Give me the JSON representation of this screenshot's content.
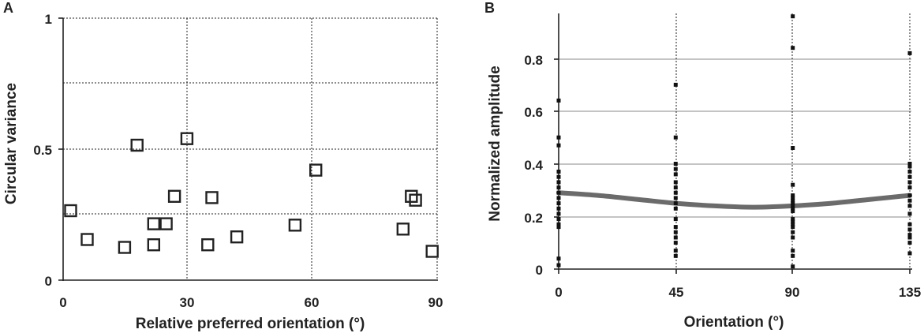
{
  "chart_data": [
    {
      "panel": "A",
      "type": "scatter",
      "title": "",
      "xlabel": "Relative preferred orientation (°)",
      "ylabel": "Circular variance",
      "xlim": [
        0,
        90
      ],
      "ylim": [
        0,
        1
      ],
      "xticks": [
        "0",
        "30",
        "60",
        "90"
      ],
      "xtick_values": [
        0,
        30,
        60,
        90
      ],
      "yticks": [
        "0",
        "0.5",
        "1"
      ],
      "ytick_values": [
        0,
        0.5,
        1
      ],
      "grid": "major gridlines",
      "marker": "open square",
      "points": [
        {
          "x": 1.8,
          "y": 0.265
        },
        {
          "x": 5.8,
          "y": 0.155
        },
        {
          "x": 14.8,
          "y": 0.125
        },
        {
          "x": 17.8,
          "y": 0.515
        },
        {
          "x": 21.8,
          "y": 0.135
        },
        {
          "x": 21.8,
          "y": 0.215
        },
        {
          "x": 24.8,
          "y": 0.215
        },
        {
          "x": 26.8,
          "y": 0.32
        },
        {
          "x": 29.8,
          "y": 0.54
        },
        {
          "x": 34.8,
          "y": 0.135
        },
        {
          "x": 35.8,
          "y": 0.315
        },
        {
          "x": 41.8,
          "y": 0.165
        },
        {
          "x": 55.8,
          "y": 0.21
        },
        {
          "x": 60.8,
          "y": 0.42
        },
        {
          "x": 81.8,
          "y": 0.195
        },
        {
          "x": 83.8,
          "y": 0.32
        },
        {
          "x": 84.8,
          "y": 0.305
        },
        {
          "x": 88.8,
          "y": 0.11
        }
      ]
    },
    {
      "panel": "B",
      "type": "scatter",
      "title": "",
      "xlabel": "Orientation (°)",
      "ylabel": "Normalized amplitude",
      "xlim": [
        0,
        135
      ],
      "ylim": [
        0,
        0.95
      ],
      "xticks": [
        "0",
        "45",
        "90",
        "135"
      ],
      "xtick_values": [
        0,
        45,
        90,
        135
      ],
      "yticks": [
        "0",
        "0.2",
        "0.4",
        "0.6",
        "0.8"
      ],
      "ytick_values": [
        0,
        0.2,
        0.4,
        0.6,
        0.8
      ],
      "grid": "major gridlines",
      "marker": "small filled square",
      "curve_color": "#6b6b6b",
      "points": [
        {
          "x": 0,
          "y": 0.64
        },
        {
          "x": 0,
          "y": 0.5
        },
        {
          "x": 0,
          "y": 0.47
        },
        {
          "x": 0,
          "y": 0.37
        },
        {
          "x": 0,
          "y": 0.35
        },
        {
          "x": 0,
          "y": 0.33
        },
        {
          "x": 0,
          "y": 0.31
        },
        {
          "x": 0,
          "y": 0.29
        },
        {
          "x": 0,
          "y": 0.27
        },
        {
          "x": 0,
          "y": 0.25
        },
        {
          "x": 0,
          "y": 0.23
        },
        {
          "x": 0,
          "y": 0.21
        },
        {
          "x": 0,
          "y": 0.19
        },
        {
          "x": 0,
          "y": 0.17
        },
        {
          "x": 0,
          "y": 0.16
        },
        {
          "x": 0,
          "y": 0.04
        },
        {
          "x": 0,
          "y": 0.015
        },
        {
          "x": 45,
          "y": 0.7
        },
        {
          "x": 45,
          "y": 0.5
        },
        {
          "x": 45,
          "y": 0.4
        },
        {
          "x": 45,
          "y": 0.38
        },
        {
          "x": 45,
          "y": 0.36
        },
        {
          "x": 45,
          "y": 0.33
        },
        {
          "x": 45,
          "y": 0.31
        },
        {
          "x": 45,
          "y": 0.29
        },
        {
          "x": 45,
          "y": 0.27
        },
        {
          "x": 45,
          "y": 0.25
        },
        {
          "x": 45,
          "y": 0.23
        },
        {
          "x": 45,
          "y": 0.19
        },
        {
          "x": 45,
          "y": 0.16
        },
        {
          "x": 45,
          "y": 0.14
        },
        {
          "x": 45,
          "y": 0.12
        },
        {
          "x": 45,
          "y": 0.1
        },
        {
          "x": 45,
          "y": 0.07
        },
        {
          "x": 45,
          "y": 0.05
        },
        {
          "x": 90,
          "y": 0.96
        },
        {
          "x": 90,
          "y": 0.84
        },
        {
          "x": 90,
          "y": 0.46
        },
        {
          "x": 90,
          "y": 0.32
        },
        {
          "x": 90,
          "y": 0.28
        },
        {
          "x": 90,
          "y": 0.27
        },
        {
          "x": 90,
          "y": 0.26
        },
        {
          "x": 90,
          "y": 0.25
        },
        {
          "x": 90,
          "y": 0.24
        },
        {
          "x": 90,
          "y": 0.23
        },
        {
          "x": 90,
          "y": 0.22
        },
        {
          "x": 90,
          "y": 0.19
        },
        {
          "x": 90,
          "y": 0.18
        },
        {
          "x": 90,
          "y": 0.17
        },
        {
          "x": 90,
          "y": 0.16
        },
        {
          "x": 90,
          "y": 0.14
        },
        {
          "x": 90,
          "y": 0.12
        },
        {
          "x": 90,
          "y": 0.07
        },
        {
          "x": 90,
          "y": 0.05
        },
        {
          "x": 90,
          "y": 0.01
        },
        {
          "x": 135,
          "y": 0.82
        },
        {
          "x": 135,
          "y": 0.4
        },
        {
          "x": 135,
          "y": 0.39
        },
        {
          "x": 135,
          "y": 0.37
        },
        {
          "x": 135,
          "y": 0.35
        },
        {
          "x": 135,
          "y": 0.33
        },
        {
          "x": 135,
          "y": 0.31
        },
        {
          "x": 135,
          "y": 0.28
        },
        {
          "x": 135,
          "y": 0.26
        },
        {
          "x": 135,
          "y": 0.24
        },
        {
          "x": 135,
          "y": 0.21
        },
        {
          "x": 135,
          "y": 0.17
        },
        {
          "x": 135,
          "y": 0.15
        },
        {
          "x": 135,
          "y": 0.13
        },
        {
          "x": 135,
          "y": 0.12
        },
        {
          "x": 135,
          "y": 0.1
        },
        {
          "x": 135,
          "y": 0.06
        }
      ],
      "curve": [
        {
          "x": 0,
          "y": 0.29
        },
        {
          "x": 15,
          "y": 0.28
        },
        {
          "x": 30,
          "y": 0.265
        },
        {
          "x": 45,
          "y": 0.25
        },
        {
          "x": 60,
          "y": 0.24
        },
        {
          "x": 75,
          "y": 0.235
        },
        {
          "x": 90,
          "y": 0.24
        },
        {
          "x": 105,
          "y": 0.25
        },
        {
          "x": 120,
          "y": 0.265
        },
        {
          "x": 135,
          "y": 0.28
        }
      ]
    }
  ]
}
